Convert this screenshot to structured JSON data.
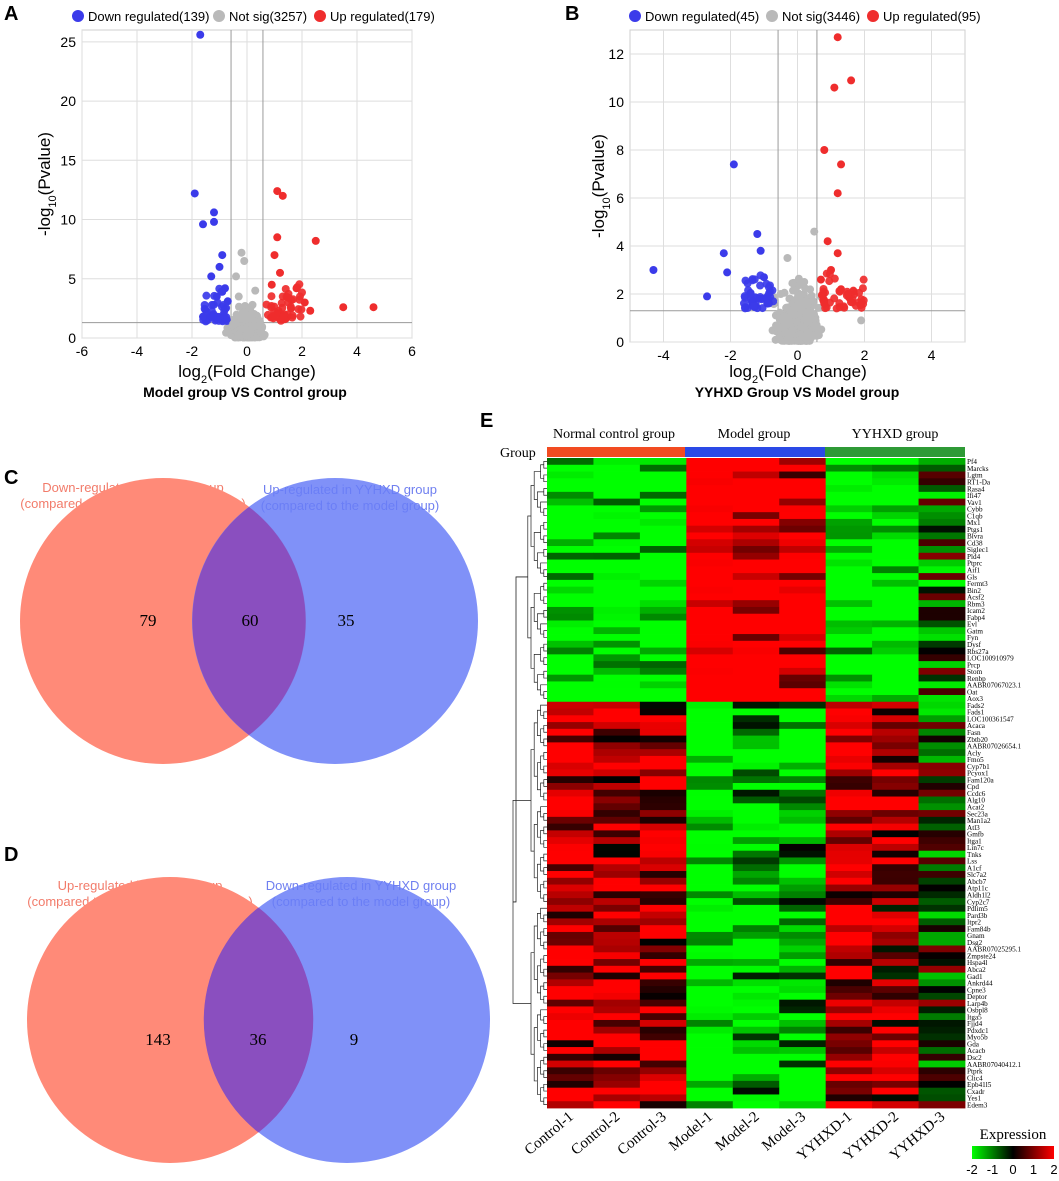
{
  "figure": {
    "colors": {
      "down": "#3b3bea",
      "up": "#ef2d2d",
      "notsig": "#b9b9b9",
      "grid": "#dedede",
      "vennLeft": "#ff8a78",
      "vennRight": "#6a7ef7",
      "vennOverlap": "#8a4fbf",
      "group1": "#f24b21",
      "group2": "#2a49e6",
      "group3": "#2e9a36"
    }
  },
  "chart_data": [
    {
      "type": "scatter",
      "panel": "A",
      "title": "Model group VS Control group",
      "xlabel": "log2(Fold Change)",
      "ylabel": "-log10(Pvalue)",
      "xlim": [
        -6,
        6
      ],
      "ylim": [
        0,
        26
      ],
      "xticks": [
        "-6",
        "-4",
        "-2",
        "0",
        "2",
        "4",
        "6"
      ],
      "yticks": [
        "0",
        "5",
        "10",
        "15",
        "20",
        "25"
      ],
      "legend": [
        "Down regulated(139)",
        "Not sig(3257)",
        "Up regulated(179)"
      ],
      "thresholds": {
        "fc": [
          -0.58,
          0.58
        ],
        "p": 1.3
      },
      "series": [
        {
          "name": "Down regulated",
          "points": [
            [
              -1.7,
              25.6
            ],
            [
              -1.9,
              12.2
            ],
            [
              -1.2,
              10.6
            ],
            [
              -1.6,
              9.6
            ],
            [
              -1.2,
              9.8
            ],
            [
              -0.9,
              7.0
            ],
            [
              -1.0,
              6.0
            ],
            [
              -1.3,
              5.2
            ],
            [
              -0.8,
              4.2
            ],
            [
              -1.6,
              1.8
            ],
            [
              -1.1,
              3.5
            ],
            [
              -0.9,
              3.9
            ],
            [
              -0.7,
              3.1
            ]
          ]
        },
        {
          "name": "Up regulated",
          "points": [
            [
              1.1,
              12.4
            ],
            [
              1.3,
              12.0
            ],
            [
              2.5,
              8.2
            ],
            [
              1.1,
              8.5
            ],
            [
              1.0,
              7.0
            ],
            [
              3.5,
              2.6
            ],
            [
              4.6,
              2.6
            ],
            [
              2.1,
              3.0
            ],
            [
              1.8,
              4.2
            ],
            [
              1.5,
              3.4
            ],
            [
              1.2,
              5.5
            ],
            [
              0.9,
              4.5
            ],
            [
              1.6,
              2.5
            ],
            [
              2.3,
              2.3
            ]
          ]
        },
        {
          "name": "Not sig",
          "points": [
            [
              -0.2,
              7.2
            ],
            [
              -0.1,
              6.5
            ],
            [
              -0.4,
              5.2
            ],
            [
              0.3,
              4.0
            ],
            [
              -0.3,
              3.5
            ],
            [
              0.2,
              2.8
            ],
            [
              -0.1,
              2.2
            ],
            [
              0.1,
              1.6
            ],
            [
              -0.5,
              1.2
            ],
            [
              0.4,
              1.0
            ],
            [
              0.0,
              0.6
            ],
            [
              -0.3,
              0.3
            ],
            [
              0.5,
              0.5
            ]
          ]
        }
      ]
    },
    {
      "type": "scatter",
      "panel": "B",
      "title": "YYHXD Group VS Model group",
      "xlabel": "log2(Fold Change)",
      "ylabel": "-log10(Pvalue)",
      "xlim": [
        -5,
        5
      ],
      "ylim": [
        0,
        13
      ],
      "xticks": [
        "-4",
        "-2",
        "0",
        "2",
        "4"
      ],
      "yticks": [
        "0",
        "2",
        "4",
        "6",
        "8",
        "10",
        "12"
      ],
      "legend": [
        "Down regulated(45)",
        "Not sig(3446)",
        "Up regulated(95)"
      ],
      "thresholds": {
        "fc": [
          -0.58,
          0.58
        ],
        "p": 1.3
      },
      "series": [
        {
          "name": "Down regulated",
          "points": [
            [
              -1.9,
              7.4
            ],
            [
              -1.2,
              4.5
            ],
            [
              -2.2,
              3.7
            ],
            [
              -4.3,
              3.0
            ],
            [
              -2.7,
              1.9
            ],
            [
              -2.1,
              2.9
            ],
            [
              -1.1,
              3.8
            ],
            [
              -1.0,
              2.7
            ],
            [
              -1.4,
              2.0
            ],
            [
              -0.9,
              1.6
            ],
            [
              -1.3,
              1.5
            ]
          ]
        },
        {
          "name": "Up regulated",
          "points": [
            [
              1.2,
              12.7
            ],
            [
              1.6,
              10.9
            ],
            [
              1.1,
              10.6
            ],
            [
              0.8,
              8.0
            ],
            [
              1.3,
              7.4
            ],
            [
              1.2,
              6.2
            ],
            [
              0.9,
              4.2
            ],
            [
              1.2,
              3.7
            ],
            [
              1.0,
              3.0
            ],
            [
              0.7,
              2.6
            ],
            [
              1.3,
              2.2
            ],
            [
              1.5,
              2.0
            ],
            [
              0.8,
              1.6
            ]
          ]
        },
        {
          "name": "Not sig",
          "points": [
            [
              0.5,
              4.6
            ],
            [
              -0.3,
              3.5
            ],
            [
              0.2,
              2.5
            ],
            [
              -0.5,
              2.0
            ],
            [
              0.1,
              1.6
            ],
            [
              -0.2,
              1.3
            ],
            [
              0.4,
              1.0
            ],
            [
              -0.6,
              0.6
            ],
            [
              0.3,
              0.4
            ],
            [
              1.9,
              0.9
            ]
          ]
        }
      ]
    },
    {
      "type": "heatmap",
      "panel": "E",
      "group_label": "Group",
      "groups": [
        "Normal control group",
        "Model group",
        "YYHXD group"
      ],
      "columns": [
        "Control-1",
        "Control-2",
        "Control-3",
        "Model-1",
        "Model-2",
        "Model-3",
        "YYHXD-1",
        "YYHXD-2",
        "YYHXD-3"
      ],
      "rows": [
        "Pf4",
        "Marcks",
        "Lgtm",
        "RT1-Da",
        "Rasa4",
        "Ifi47",
        "Vav1",
        "Cybb",
        "C1qb",
        "Mx1",
        "Ptgs1",
        "Blvra",
        "Cd38",
        "Siglec1",
        "Pld4",
        "Ptprc",
        "Aif1",
        "Gls",
        "Fermt3",
        "Bin2",
        "Acsf2",
        "Rbm3",
        "Icam2",
        "Fabp4",
        "Evl",
        "Gatm",
        "Fyn",
        "Dysf",
        "Rbs27a",
        "LOC100910979",
        "Prcp",
        "Stom",
        "Renbp",
        "AABR07067023.1",
        "Oat",
        "Aox3",
        "Fads2",
        "Fads1",
        "LOC100361547",
        "Acaca",
        "Fasn",
        "Zbtb20",
        "AABR07026654.1",
        "Acly",
        "Fmo5",
        "Cyp7b1",
        "Pcyox1",
        "Fam120a",
        "Cpd",
        "Ccdc6",
        "Alg10",
        "Acat2",
        "Sec23a",
        "Man1a2",
        "Atl3",
        "Gmfb",
        "Itga1",
        "Lin7c",
        "Tnks",
        "Lss",
        "A1cf",
        "Slc7a2",
        "Abcb7",
        "Atp11c",
        "Aldh1l2",
        "Cyp2c7",
        "Pdlim5",
        "Pard3b",
        "Itpr2",
        "Fam84b",
        "Gnam",
        "Dsg2",
        "AABR07025295.1",
        "Zmpste24",
        "Hspa4l",
        "Abca2",
        "Gad1",
        "Ankrd44",
        "Cpne3",
        "Deptor",
        "Larp4b",
        "Osbpl8",
        "Itga5",
        "Fjjd4",
        "Pdxdc1",
        "Myo5b",
        "Gda",
        "Acacb",
        "Dsc2",
        "AABR07040412.1",
        "Ptprk",
        "Clic4",
        "Epb41l5",
        "Cxadr",
        "Yes1",
        "Edem3"
      ],
      "value_range": [
        -2,
        2
      ],
      "colorbar_title": "Expression",
      "colorbar_ticks": [
        "-2",
        "-1",
        "0",
        "1",
        "2"
      ],
      "block_pattern": {
        "block1_rows": 36,
        "block1_means": [
          -1.4,
          -1.3,
          -1.4,
          1.8,
          1.4,
          1.2,
          -1.4,
          -1.5,
          -0.3
        ],
        "block2_means": [
          1.0,
          0.9,
          0.9,
          -1.3,
          -1.0,
          -0.9,
          1.0,
          0.7,
          -0.2
        ]
      }
    }
  ],
  "venns": [
    {
      "panel": "C",
      "left_label_1": "Down-regulated in model group",
      "left_label_2": "(compared to the normal control group)",
      "right_label_1": "Up-regulated in YYHXD group",
      "right_label_2": "(compared to the model group)",
      "left_only": "79",
      "overlap": "60",
      "right_only": "35"
    },
    {
      "panel": "D",
      "left_label_1": "Up-regulated in model group",
      "left_label_2": "(compared to the normal control group)",
      "right_label_1": "Down-regulated in YYHXD group",
      "right_label_2": "(compared to the model group)",
      "left_only": "143",
      "overlap": "36",
      "right_only": "9"
    }
  ],
  "panel_letters": [
    "A",
    "B",
    "C",
    "D",
    "E"
  ]
}
